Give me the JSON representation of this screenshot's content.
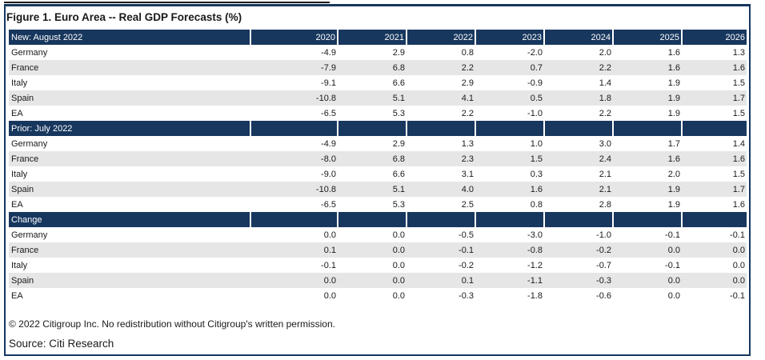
{
  "title": "Figure 1. Euro Area -- Real GDP Forecasts (%)",
  "years": [
    "2020",
    "2021",
    "2022",
    "2023",
    "2024",
    "2025",
    "2026"
  ],
  "sections": [
    {
      "label": "New: August 2022",
      "rows": [
        {
          "country": "Germany",
          "values": [
            "-4.9",
            "2.9",
            "0.8",
            "-2.0",
            "2.0",
            "1.6",
            "1.3"
          ]
        },
        {
          "country": "France",
          "values": [
            "-7.9",
            "6.8",
            "2.2",
            "0.7",
            "2.2",
            "1.6",
            "1.6"
          ]
        },
        {
          "country": "Italy",
          "values": [
            "-9.1",
            "6.6",
            "2.9",
            "-0.9",
            "1.4",
            "1.9",
            "1.5"
          ]
        },
        {
          "country": "Spain",
          "values": [
            "-10.8",
            "5.1",
            "4.1",
            "0.5",
            "1.8",
            "1.9",
            "1.7"
          ]
        },
        {
          "country": "EA",
          "values": [
            "-6.5",
            "5.3",
            "2.2",
            "-1.0",
            "2.2",
            "1.9",
            "1.5"
          ]
        }
      ]
    },
    {
      "label": "Prior: July 2022",
      "rows": [
        {
          "country": "Germany",
          "values": [
            "-4.9",
            "2.9",
            "1.3",
            "1.0",
            "3.0",
            "1.7",
            "1.4"
          ]
        },
        {
          "country": "France",
          "values": [
            "-8.0",
            "6.8",
            "2.3",
            "1.5",
            "2.4",
            "1.6",
            "1.6"
          ]
        },
        {
          "country": "Italy",
          "values": [
            "-9.0",
            "6.6",
            "3.1",
            "0.3",
            "2.1",
            "2.0",
            "1.5"
          ]
        },
        {
          "country": "Spain",
          "values": [
            "-10.8",
            "5.1",
            "4.0",
            "1.6",
            "2.1",
            "1.9",
            "1.7"
          ]
        },
        {
          "country": "EA",
          "values": [
            "-6.5",
            "5.3",
            "2.5",
            "0.8",
            "2.8",
            "1.9",
            "1.6"
          ]
        }
      ]
    },
    {
      "label": "Change",
      "rows": [
        {
          "country": "Germany",
          "values": [
            "0.0",
            "0.0",
            "-0.5",
            "-3.0",
            "-1.0",
            "-0.1",
            "-0.1"
          ]
        },
        {
          "country": "France",
          "values": [
            "0.1",
            "0.0",
            "-0.1",
            "-0.8",
            "-0.2",
            "0.0",
            "0.0"
          ]
        },
        {
          "country": "Italy",
          "values": [
            "-0.1",
            "0.0",
            "-0.2",
            "-1.2",
            "-0.7",
            "-0.1",
            "0.0"
          ]
        },
        {
          "country": "Spain",
          "values": [
            "0.0",
            "0.0",
            "0.1",
            "-1.1",
            "-0.3",
            "0.0",
            "0.0"
          ]
        },
        {
          "country": "EA",
          "values": [
            "0.0",
            "0.0",
            "-0.3",
            "-1.8",
            "-0.6",
            "0.0",
            "-0.1"
          ]
        }
      ]
    }
  ],
  "copyright": "© 2022 Citigroup Inc. No redistribution without Citigroup's written permission.",
  "source": "Source: Citi Research",
  "colors": {
    "header_bg": "#17375e",
    "alt_row_bg": "#e6e6e6",
    "header_text": "#ffffff"
  }
}
